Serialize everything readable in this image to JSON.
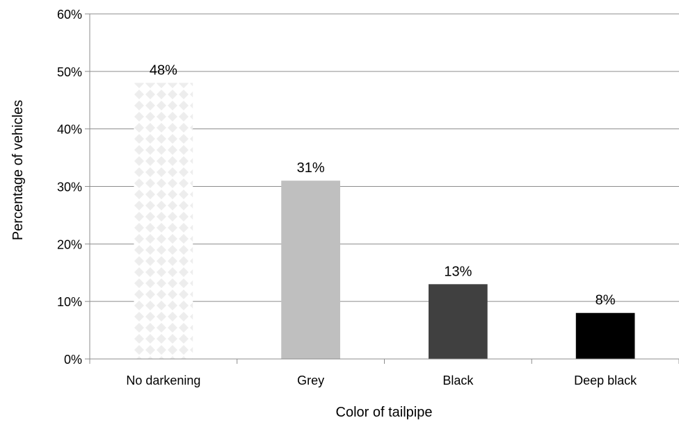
{
  "chart_data": {
    "type": "bar",
    "title": "",
    "xlabel": "Color of tailpipe",
    "ylabel": "Percentage of vehicles",
    "categories": [
      "No darkening",
      "Grey",
      "Black",
      "Deep black"
    ],
    "values": [
      48,
      31,
      13,
      8
    ],
    "value_labels": [
      "48%",
      "31%",
      "13%",
      "8%"
    ],
    "ylim": [
      0,
      60
    ],
    "yticks": [
      0,
      10,
      20,
      30,
      40,
      50,
      60
    ],
    "ytick_labels": [
      "0%",
      "10%",
      "20%",
      "30%",
      "40%",
      "50%",
      "60%"
    ],
    "grid": true,
    "legend": "none",
    "bar_fills": [
      "pattern-diamond-light",
      "#bfbfbf",
      "#404040",
      "#000000"
    ],
    "gridline_color": "#8c8c8c"
  }
}
